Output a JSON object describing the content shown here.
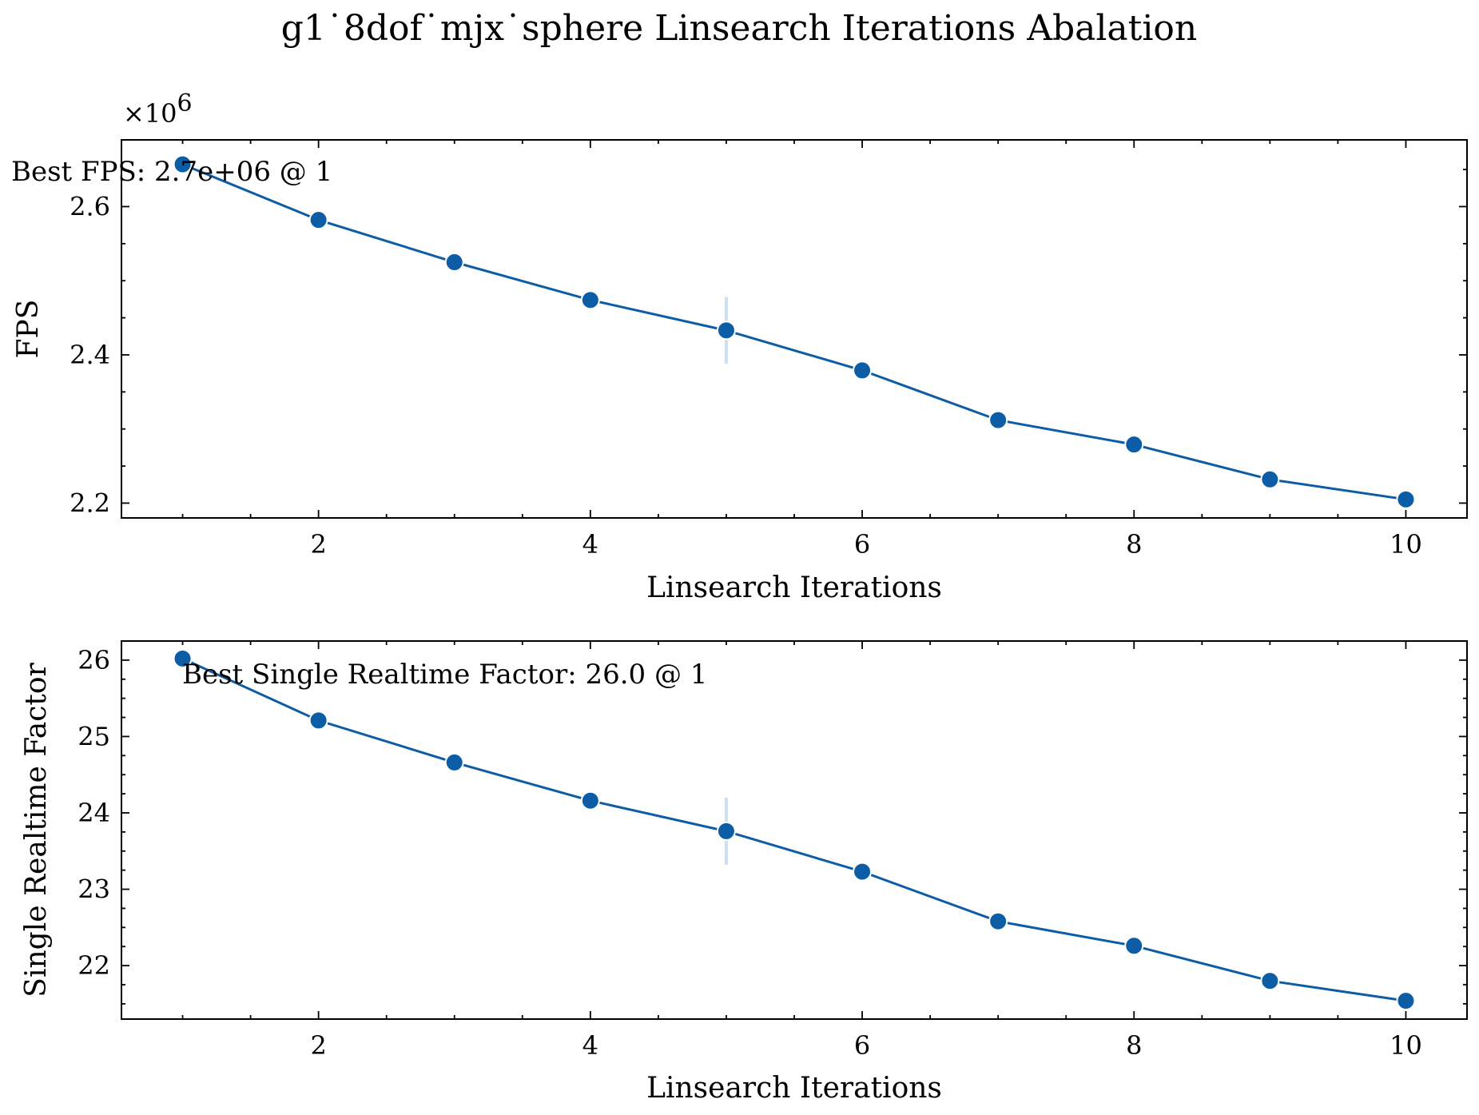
{
  "chart_data": {
    "title": "g1˙8dof˙mjx˙sphere Linsearch Iterations Abalation",
    "subplots": [
      {
        "type": "line",
        "xlabel": "Linsearch Iterations",
        "ylabel": "FPS",
        "y_multiplier_label": "×10",
        "y_multiplier_exponent": "6",
        "x": [
          1,
          2,
          3,
          4,
          5,
          6,
          7,
          8,
          9,
          10
        ],
        "values": [
          2.657,
          2.582,
          2.525,
          2.474,
          2.433,
          2.379,
          2.312,
          2.279,
          2.232,
          2.205
        ],
        "error": [
          0,
          0,
          0,
          0,
          0.045,
          0,
          0,
          0,
          0,
          0
        ],
        "xlim": [
          0.55,
          10.45
        ],
        "ylim": [
          2.18,
          2.69
        ],
        "xticks": [
          2,
          4,
          6,
          8,
          10
        ],
        "xtick_labels": [
          "2",
          "4",
          "6",
          "8",
          "10"
        ],
        "yticks": [
          2.2,
          2.4,
          2.6
        ],
        "ytick_labels": [
          "2.2",
          "2.4",
          "2.6"
        ],
        "annotation": "Best FPS: 2.7e+06 @ 1",
        "color": "#0c5da5"
      },
      {
        "type": "line",
        "xlabel": "Linsearch Iterations",
        "ylabel": "Single Realtime Factor",
        "x": [
          1,
          2,
          3,
          4,
          5,
          6,
          7,
          8,
          9,
          10
        ],
        "values": [
          26.02,
          25.21,
          24.66,
          24.16,
          23.76,
          23.23,
          22.58,
          22.26,
          21.8,
          21.54
        ],
        "error": [
          0,
          0,
          0,
          0,
          0.44,
          0,
          0,
          0,
          0,
          0
        ],
        "xlim": [
          0.55,
          10.45
        ],
        "ylim": [
          21.3,
          26.25
        ],
        "xticks": [
          2,
          4,
          6,
          8,
          10
        ],
        "xtick_labels": [
          "2",
          "4",
          "6",
          "8",
          "10"
        ],
        "yticks": [
          22,
          23,
          24,
          25,
          26
        ],
        "ytick_labels": [
          "22",
          "23",
          "24",
          "25",
          "26"
        ],
        "annotation": "Best Single Realtime Factor: 26.0 @ 1",
        "color": "#0c5da5"
      }
    ]
  }
}
